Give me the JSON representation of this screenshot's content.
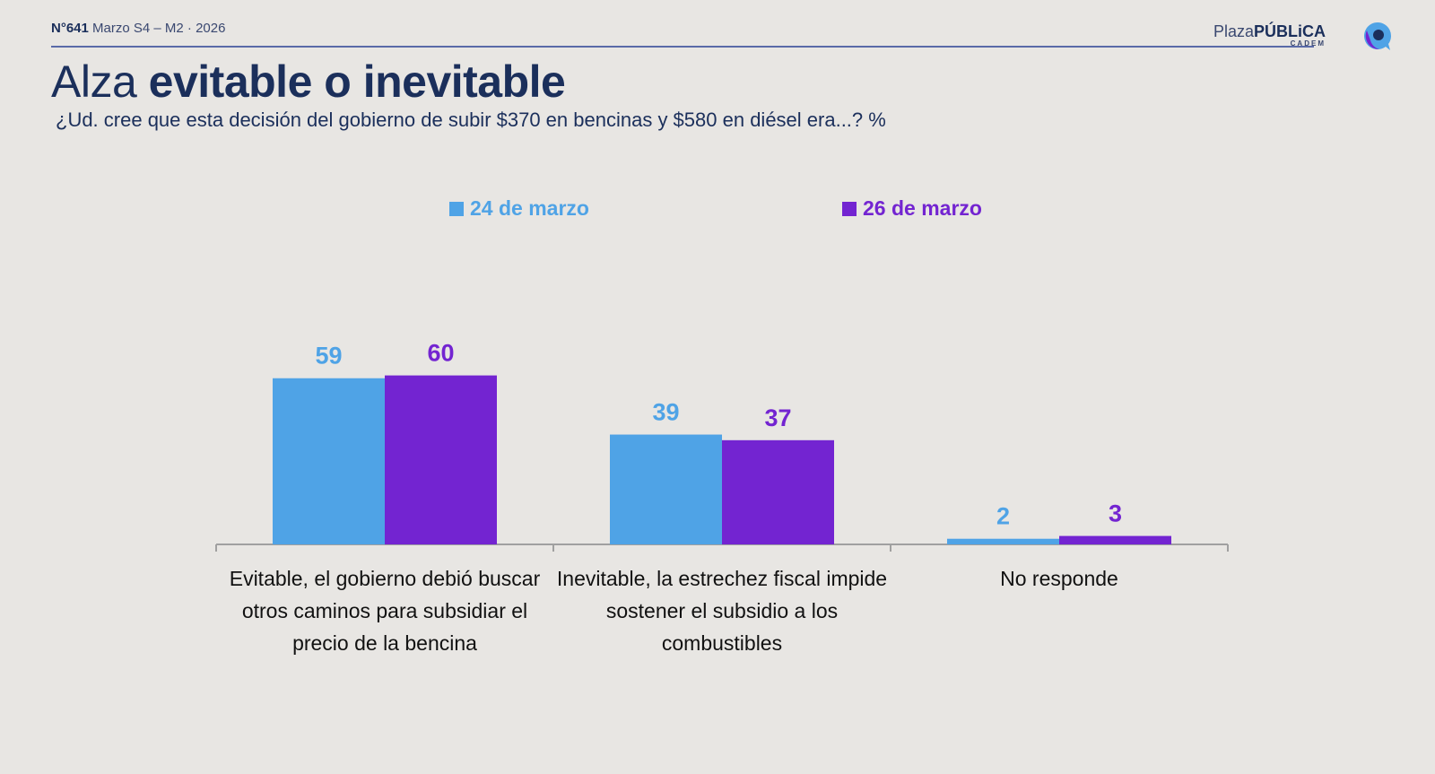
{
  "header": {
    "number": "N°641",
    "period": "Marzo S4 – M2 · 2026"
  },
  "brand": {
    "light": "Plaza",
    "bold": "PÚBLiCA",
    "sub": "CADEM",
    "colors": [
      "#4fa3e6",
      "#7324d1",
      "#1b2f5b"
    ]
  },
  "title": {
    "regular": "Alza",
    "bold": "evitable o inevitable"
  },
  "subtitle": "¿Ud. cree que esta decisión del gobierno de subir $370 en bencinas y $580 en diésel era...? %",
  "chart_data": {
    "type": "bar",
    "categories": [
      "Evitable, el gobierno debió buscar otros caminos para subsidiar el precio de la bencina",
      "Inevitable, la estrechez fiscal impide sostener el subsidio a los combustibles",
      "No responde"
    ],
    "series": [
      {
        "name": "24 de marzo",
        "color": "#4fa3e6",
        "values": [
          59,
          39,
          2
        ]
      },
      {
        "name": "26 de marzo",
        "color": "#7324d1",
        "values": [
          60,
          37,
          3
        ]
      }
    ],
    "ylim": [
      0,
      100
    ],
    "grid": false,
    "legend": "top",
    "data_labels": true
  }
}
